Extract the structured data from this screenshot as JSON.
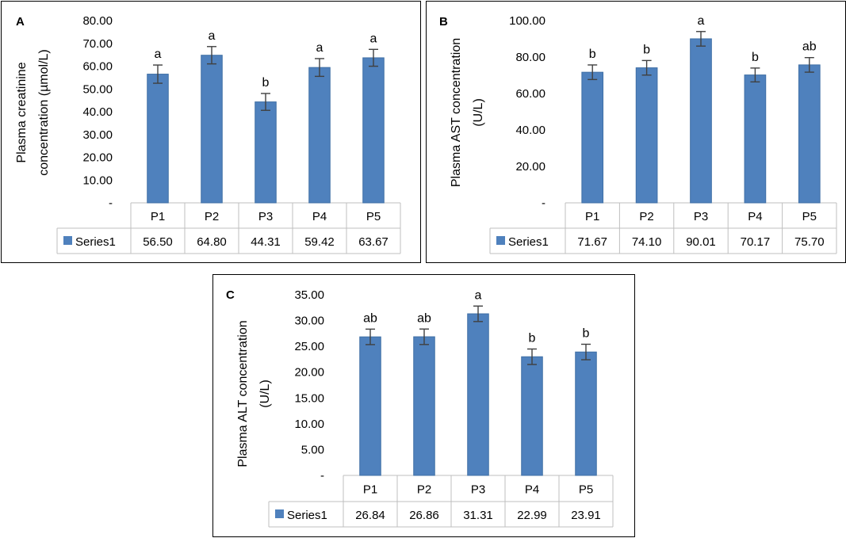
{
  "chart_data": [
    {
      "type": "bar",
      "panel_label": "A",
      "title": "",
      "xlabel": "",
      "ylabel": "Plasma creatinine concentration (µmol/L)",
      "ylabel_lines": [
        "Plasma creatinine",
        "concentration (µmol/L)"
      ],
      "ylim": [
        0,
        80
      ],
      "yticks": [
        "-",
        "10.00",
        "20.00",
        "30.00",
        "40.00",
        "50.00",
        "60.00",
        "70.00",
        "80.00"
      ],
      "categories": [
        "P1",
        "P2",
        "P3",
        "P4",
        "P5"
      ],
      "series": [
        {
          "name": "Series1",
          "values": [
            56.5,
            64.8,
            44.31,
            59.42,
            63.67
          ],
          "labels": [
            "56.50",
            "64.80",
            "44.31",
            "59.42",
            "63.67"
          ]
        }
      ],
      "errors": [
        4,
        3.8,
        3.7,
        3.9,
        3.7
      ],
      "significance": [
        "a",
        "a",
        "b",
        "a",
        "a"
      ],
      "bar_color": "#4f81bd"
    },
    {
      "type": "bar",
      "panel_label": "B",
      "title": "",
      "xlabel": "",
      "ylabel": "Plasma AST concentration (U/L)",
      "ylabel_lines": [
        "Plasma AST concentration",
        "(U/L)"
      ],
      "ylim": [
        0,
        100
      ],
      "yticks": [
        "-",
        "20.00",
        "40.00",
        "60.00",
        "80.00",
        "100.00"
      ],
      "categories": [
        "P1",
        "P2",
        "P3",
        "P4",
        "P5"
      ],
      "series": [
        {
          "name": "Series1",
          "values": [
            71.67,
            74.1,
            90.01,
            70.17,
            75.7
          ],
          "labels": [
            "71.67",
            "74.10",
            "90.01",
            "70.17",
            "75.70"
          ]
        }
      ],
      "errors": [
        4,
        4,
        4,
        3.8,
        4
      ],
      "significance": [
        "b",
        "b",
        "a",
        "b",
        "ab"
      ],
      "bar_color": "#4f81bd"
    },
    {
      "type": "bar",
      "panel_label": "C",
      "title": "",
      "xlabel": "",
      "ylabel": "Plasma ALT concentration (U/L)",
      "ylabel_lines": [
        "Plasma ALT concentration",
        "(U/L)"
      ],
      "ylim": [
        0,
        35
      ],
      "yticks": [
        "-",
        "5.00",
        "10.00",
        "15.00",
        "20.00",
        "25.00",
        "30.00",
        "35.00"
      ],
      "categories": [
        "P1",
        "P2",
        "P3",
        "P4",
        "P5"
      ],
      "series": [
        {
          "name": "Series1",
          "values": [
            26.84,
            26.86,
            31.31,
            22.99,
            23.91
          ],
          "labels": [
            "26.84",
            "26.86",
            "31.31",
            "22.99",
            "23.91"
          ]
        }
      ],
      "errors": [
        1.5,
        1.5,
        1.5,
        1.5,
        1.5
      ],
      "significance": [
        "ab",
        "ab",
        "a",
        "b",
        "b"
      ],
      "bar_color": "#4f81bd"
    }
  ]
}
